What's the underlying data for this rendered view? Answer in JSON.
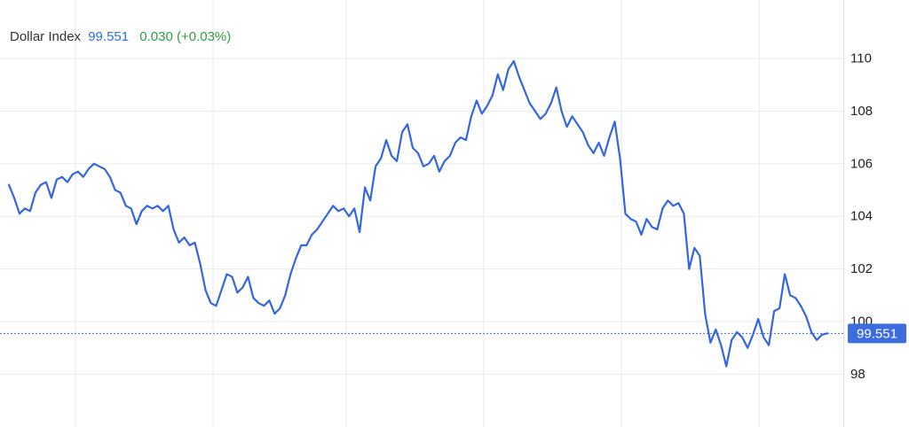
{
  "legend": {
    "name": "Dollar Index",
    "price": "99.551",
    "change": "0.030 (+0.03%)"
  },
  "colors": {
    "line": "#3366e0",
    "price_label_bg": "#3b6de0",
    "change_positive": "#2e9e3e",
    "grid": "#e9eaec"
  },
  "chart_data": {
    "type": "line",
    "title": "",
    "xlabel": "",
    "ylabel": "",
    "ylim": [
      96.5,
      111.5
    ],
    "yticks": [
      98,
      100,
      102,
      104,
      106,
      108,
      110
    ],
    "ytick_labels": [
      "98",
      "100",
      "102",
      "104",
      "106",
      "108",
      "110"
    ],
    "grid": true,
    "y_axis_position": "right",
    "last_price": 99.551,
    "last_price_label": "99.551",
    "series": [
      {
        "values": [
          105.2,
          104.7,
          104.1,
          104.3,
          104.2,
          104.9,
          105.2,
          105.3,
          104.7,
          105.4,
          105.5,
          105.3,
          105.6,
          105.7,
          105.5,
          105.8,
          106.0,
          105.9,
          105.8,
          105.5,
          105.0,
          104.9,
          104.4,
          104.3,
          103.7,
          104.2,
          104.4,
          104.3,
          104.4,
          104.2,
          104.4,
          103.5,
          103.0,
          103.2,
          102.9,
          103.0,
          102.2,
          101.2,
          100.7,
          100.6,
          101.2,
          101.8,
          101.7,
          101.1,
          101.3,
          101.7,
          100.9,
          100.7,
          100.6,
          100.8,
          100.3,
          100.5,
          101.0,
          101.8,
          102.4,
          102.9,
          102.9,
          103.3,
          103.5,
          103.8,
          104.1,
          104.4,
          104.2,
          104.3,
          104.0,
          104.3,
          103.4,
          105.1,
          104.6,
          105.9,
          106.2,
          106.9,
          106.3,
          106.1,
          107.2,
          107.5,
          106.6,
          106.4,
          105.9,
          106.0,
          106.3,
          105.7,
          106.1,
          106.3,
          106.8,
          107.0,
          106.9,
          107.8,
          108.4,
          107.9,
          108.2,
          108.6,
          109.4,
          108.8,
          109.6,
          109.9,
          109.3,
          108.8,
          108.3,
          108.0,
          107.7,
          107.9,
          108.3,
          108.9,
          108.0,
          107.4,
          107.8,
          107.5,
          107.2,
          106.7,
          106.4,
          106.8,
          106.3,
          107.0,
          107.6,
          106.2,
          104.1,
          103.9,
          103.8,
          103.3,
          103.9,
          103.6,
          103.5,
          104.3,
          104.6,
          104.4,
          104.5,
          104.1,
          102.0,
          102.8,
          102.5,
          100.3,
          99.2,
          99.7,
          99.1,
          98.3,
          99.3,
          99.6,
          99.4,
          99.0,
          99.5,
          100.1,
          99.4,
          99.1,
          100.4,
          100.5,
          101.8,
          101.0,
          100.9,
          100.6,
          100.2,
          99.6,
          99.3,
          99.5,
          99.551
        ]
      }
    ]
  }
}
